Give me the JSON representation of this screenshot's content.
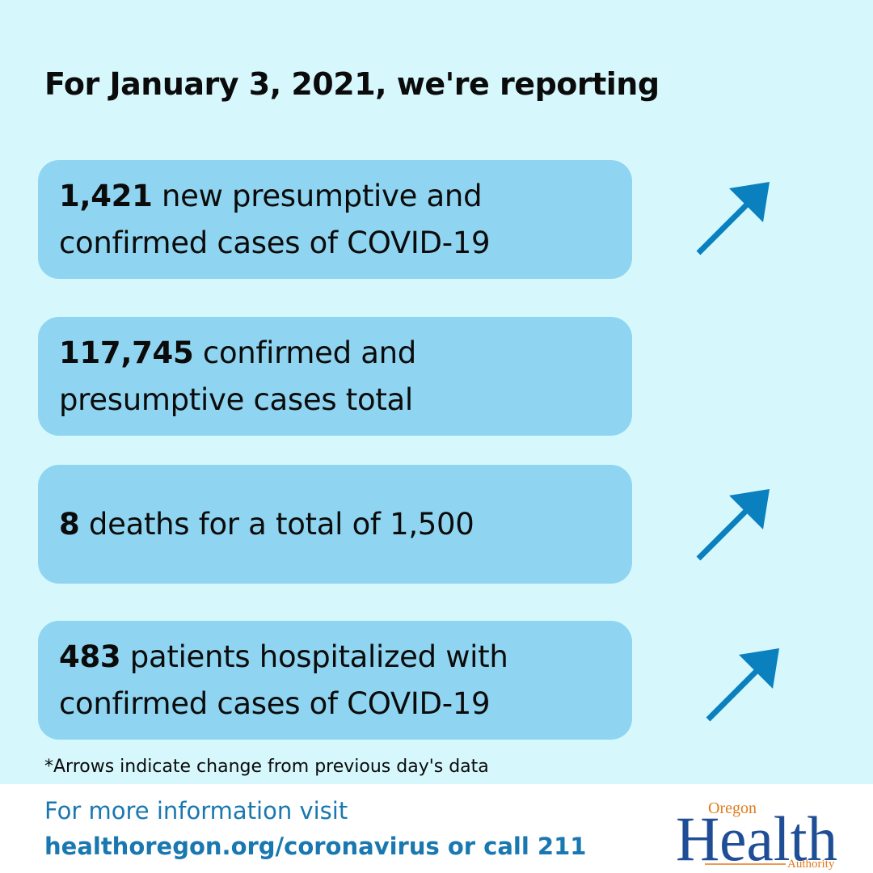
{
  "header": {
    "title": "For January 3, 2021, we're reporting"
  },
  "stats": [
    {
      "value": "1,421",
      "line1_rest": " new presumptive and",
      "line2": "confirmed cases of COVID-19",
      "trend": "up"
    },
    {
      "value": "117,745",
      "line1_rest": " confirmed and",
      "line2": "presumptive cases total",
      "trend": "none"
    },
    {
      "value": "8",
      "line1_rest": " deaths for a total of 1,500",
      "line2": "",
      "trend": "up"
    },
    {
      "value": "483",
      "line1_rest": " patients hospitalized with",
      "line2": "confirmed cases of COVID-19",
      "trend": "up"
    }
  ],
  "footnote": "*Arrows indicate change from previous day's data",
  "footer": {
    "info_text": "For more information visit",
    "link_text": "healthoregon.org/coronavirus or call 211"
  },
  "logo": {
    "top_word": "Oregon",
    "main_word": "Health",
    "bottom_word": "Authority"
  },
  "colors": {
    "background": "#d6f8fd",
    "card": "#8fd5f1",
    "arrow": "#0a80bf",
    "footer_text": "#1a78b0",
    "logo_blue": "#1f4e96",
    "logo_orange": "#e07b1e"
  },
  "icons": {
    "trend_up": "arrow-up-right-icon"
  }
}
